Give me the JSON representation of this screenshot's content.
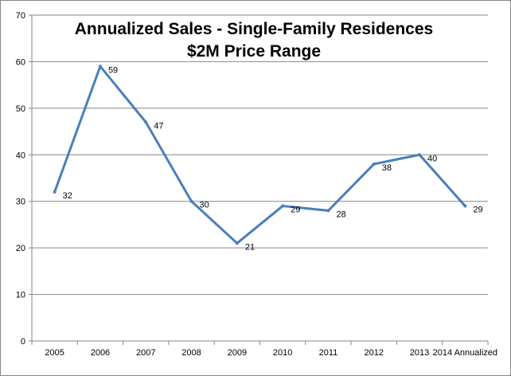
{
  "chart_data": {
    "type": "line",
    "title": "Annualized Sales - Single-Family Residences",
    "subtitle": "$2M Price Range",
    "xlabel": "",
    "ylabel": "",
    "categories": [
      "2005",
      "2006",
      "2007",
      "2008",
      "2009",
      "2010",
      "2011",
      "2012",
      "2013",
      "2014 Annualized"
    ],
    "series": [
      {
        "values": [
          32,
          59,
          47,
          30,
          21,
          29,
          28,
          38,
          40,
          29
        ],
        "color": "#4a7ebb"
      }
    ],
    "ylim": [
      0,
      70
    ],
    "yticks": [
      0,
      10,
      20,
      30,
      40,
      50,
      60,
      70
    ],
    "grid": true,
    "legend": "none",
    "data_labels": true
  }
}
